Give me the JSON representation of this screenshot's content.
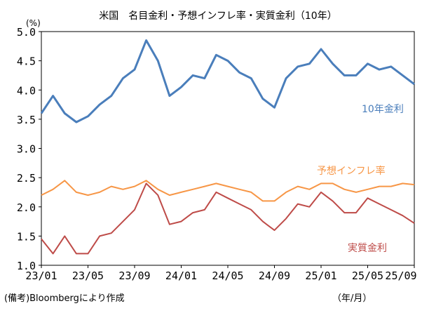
{
  "chart_data": {
    "type": "line",
    "title": "米国　名目金利・予想インフレ率・実質金利（10年）",
    "ylabel": "(%)",
    "xlabel": "（年/月）",
    "ylim": [
      1.0,
      5.0
    ],
    "yticks": [
      "5.0",
      "4.5",
      "4.0",
      "3.5",
      "3.0",
      "2.5",
      "2.0",
      "1.5",
      "1.0"
    ],
    "xticks": [
      "23/01",
      "23/05",
      "23/09",
      "24/01",
      "24/05",
      "24/09",
      "25/01",
      "25/05",
      "25/09"
    ],
    "series": [
      {
        "name": "10年金利",
        "color": "#4a7ebb",
        "values": [
          3.6,
          3.9,
          3.6,
          3.45,
          3.55,
          3.75,
          3.9,
          4.2,
          4.35,
          4.85,
          4.5,
          3.9,
          4.05,
          4.25,
          4.2,
          4.6,
          4.5,
          4.3,
          4.2,
          3.85,
          3.7,
          4.2,
          4.4,
          4.45,
          4.7,
          4.45,
          4.25,
          4.25,
          4.45,
          4.35,
          4.4,
          4.25,
          4.1
        ]
      },
      {
        "name": "予想インフレ率",
        "color": "#f79646",
        "values": [
          2.2,
          2.3,
          2.45,
          2.25,
          2.2,
          2.25,
          2.35,
          2.3,
          2.35,
          2.45,
          2.3,
          2.2,
          2.25,
          2.3,
          2.35,
          2.4,
          2.35,
          2.3,
          2.25,
          2.1,
          2.1,
          2.25,
          2.35,
          2.3,
          2.4,
          2.4,
          2.3,
          2.25,
          2.3,
          2.35,
          2.35,
          2.4,
          2.38
        ]
      },
      {
        "name": "実質金利",
        "color": "#be4b48",
        "values": [
          1.45,
          1.2,
          1.5,
          1.2,
          1.2,
          1.5,
          1.55,
          1.75,
          1.95,
          2.4,
          2.2,
          1.7,
          1.75,
          1.9,
          1.95,
          2.25,
          2.15,
          2.05,
          1.95,
          1.75,
          1.6,
          1.8,
          2.05,
          2.0,
          2.25,
          2.1,
          1.9,
          1.9,
          2.15,
          2.05,
          1.95,
          1.85,
          1.72
        ]
      }
    ]
  },
  "note": "(備考)Bloombergにより作成"
}
